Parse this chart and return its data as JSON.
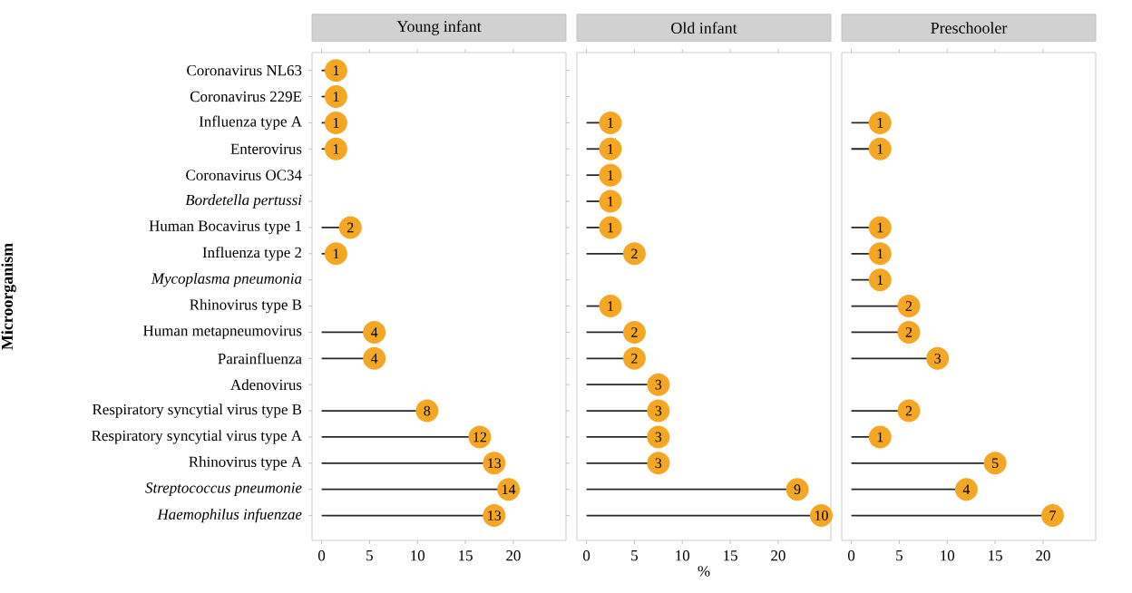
{
  "chart_data": [
    {
      "type": "lollipop",
      "orientation": "horizontal",
      "title": "Young infant",
      "ylabel": "Microorganism",
      "tick_labels": true,
      "marker": "circle",
      "color": "#f5a623",
      "categories": [
        "Coronavirus NL63",
        "Coronavirus 229E",
        "Influenza type A",
        "Enterovirus",
        "Coronavirus OC34",
        "*Bordetella pertussi*",
        "Human Bocavirus type 1",
        "Influenza type 2",
        "*Mycoplasma pneumonia*",
        "Rhinovirus type B",
        "Human metapneumovirus",
        "Parainfluenza",
        "Adenovirus",
        "Respiratory syncytial virus type B",
        "Respiratory syncytial virus type A",
        "Rhinovirus type A",
        "*Streptococcus pneumonie*",
        "*Haemophilus infuenzae*"
      ],
      "values": [
        1.5,
        1.5,
        1.5,
        1.5,
        null,
        null,
        3,
        1.5,
        null,
        null,
        5.5,
        5.5,
        null,
        11,
        16.5,
        18,
        19.5,
        18
      ],
      "annotations": [
        {
          "text": "1",
          "x": 1.5,
          "y": "Coronavirus NL63"
        },
        {
          "text": "1",
          "x": 1.5,
          "y": "Coronavirus 229E"
        },
        {
          "text": "1",
          "x": 1.5,
          "y": "Influenza type A"
        },
        {
          "text": "1",
          "x": 1.5,
          "y": "Enterovirus"
        },
        {
          "text": "2",
          "x": 3,
          "y": "Human Bocavirus type 1"
        },
        {
          "text": "1",
          "x": 1.5,
          "y": "Influenza type 2"
        },
        {
          "text": "4",
          "x": 5.5,
          "y": "Human metapneumovirus"
        },
        {
          "text": "4",
          "x": 5.5,
          "y": "Parainfluenza"
        },
        {
          "text": "8",
          "x": 11,
          "y": "Respiratory syncytial virus type B"
        },
        {
          "text": "12",
          "x": 16.5,
          "y": "Respiratory syncytial virus type A"
        },
        {
          "text": "13",
          "x": 18,
          "y": "Rhinovirus type A"
        },
        {
          "text": "14",
          "x": 19.5,
          "y": "*Streptococcus pneumonie*"
        },
        {
          "text": "13",
          "x": 18,
          "y": "*Haemophilus infuenzae*"
        }
      ],
      "xlim": [
        -1,
        25.5
      ],
      "xticks": [
        0,
        5,
        10,
        15,
        20
      ]
    },
    {
      "type": "lollipop",
      "orientation": "horizontal",
      "title": "Old infant",
      "xlabel": "%",
      "tick_labels": "x",
      "marker": "circle",
      "color": "#f5a623",
      "categories": [
        "Coronavirus NL63",
        "Coronavirus 229E",
        "Influenza type A",
        "Enterovirus",
        "Coronavirus OC34",
        "*Bordetella pertussi*",
        "Human Bocavirus type 1",
        "Influenza type 2",
        "*Mycoplasma pneumonia*",
        "Rhinovirus type B",
        "Human metapneumovirus",
        "Parainfluenza",
        "Adenovirus",
        "Respiratory syncytial virus type B",
        "Respiratory syncytial virus type A",
        "Rhinovirus type A",
        "*Streptococcus pneumonie*",
        "*Haemophilus infuenzae*"
      ],
      "values": [
        null,
        null,
        2.5,
        2.5,
        2.5,
        2.5,
        2.5,
        5,
        null,
        2.5,
        5,
        5,
        7.5,
        7.5,
        7.5,
        7.5,
        22,
        24.5
      ],
      "annotations": [
        {
          "text": "1",
          "x": 2.5,
          "y": "Influenza type A"
        },
        {
          "text": "1",
          "x": 2.5,
          "y": "Enterovirus"
        },
        {
          "text": "1",
          "x": 2.5,
          "y": "Coronavirus OC34"
        },
        {
          "text": "1",
          "x": 2.5,
          "y": "*Bordetella pertussi*"
        },
        {
          "text": "1",
          "x": 2.5,
          "y": "Human Bocavirus type 1"
        },
        {
          "text": "2",
          "x": 5,
          "y": "Influenza type 2"
        },
        {
          "text": "1",
          "x": 2.5,
          "y": "Rhinovirus type B"
        },
        {
          "text": "2",
          "x": 5,
          "y": "Human metapneumovirus"
        },
        {
          "text": "2",
          "x": 5,
          "y": "Parainfluenza"
        },
        {
          "text": "3",
          "x": 7.5,
          "y": "Adenovirus"
        },
        {
          "text": "3",
          "x": 7.5,
          "y": "Respiratory syncytial virus type B"
        },
        {
          "text": "3",
          "x": 7.5,
          "y": "Respiratory syncytial virus type A"
        },
        {
          "text": "3",
          "x": 7.5,
          "y": "Rhinovirus type A"
        },
        {
          "text": "9",
          "x": 22,
          "y": "*Streptococcus pneumonie*"
        },
        {
          "text": "10",
          "x": 24.5,
          "y": "*Haemophilus infuenzae*"
        }
      ],
      "xlim": [
        -1,
        25.5
      ],
      "xticks": [
        0,
        5,
        10,
        15,
        20
      ]
    },
    {
      "type": "lollipop",
      "orientation": "horizontal",
      "title": "Preschooler",
      "tick_labels": "x",
      "marker": "circle",
      "color": "#f5a623",
      "categories": [
        "Coronavirus NL63",
        "Coronavirus 229E",
        "Influenza type A",
        "Enterovirus",
        "Coronavirus OC34",
        "*Bordetella pertussi*",
        "Human Bocavirus type 1",
        "Influenza type 2",
        "*Mycoplasma pneumonia*",
        "Rhinovirus type B",
        "Human metapneumovirus",
        "Parainfluenza",
        "Adenovirus",
        "Respiratory syncytial virus type B",
        "Respiratory syncytial virus type A",
        "Rhinovirus type A",
        "*Streptococcus pneumonie*",
        "*Haemophilus infuenzae*"
      ],
      "values": [
        null,
        null,
        3,
        3,
        null,
        null,
        3,
        3,
        3,
        6,
        6,
        9,
        null,
        6,
        3,
        15,
        12,
        21
      ],
      "annotations": [
        {
          "text": "1",
          "x": 3,
          "y": "Influenza type A"
        },
        {
          "text": "1",
          "x": 3,
          "y": "Enterovirus"
        },
        {
          "text": "1",
          "x": 3,
          "y": "Human Bocavirus type 1"
        },
        {
          "text": "1",
          "x": 3,
          "y": "Influenza type 2"
        },
        {
          "text": "1",
          "x": 3,
          "y": "*Mycoplasma pneumonia*"
        },
        {
          "text": "2",
          "x": 6,
          "y": "Rhinovirus type B"
        },
        {
          "text": "2",
          "x": 6,
          "y": "Human metapneumovirus"
        },
        {
          "text": "3",
          "x": 9,
          "y": "Parainfluenza"
        },
        {
          "text": "2",
          "x": 6,
          "y": "Respiratory syncytial virus type B"
        },
        {
          "text": "1",
          "x": 3,
          "y": "Respiratory syncytial virus type A"
        },
        {
          "text": "5",
          "x": 15,
          "y": "Rhinovirus type A"
        },
        {
          "text": "4",
          "x": 12,
          "y": "*Streptococcus pneumonie*"
        },
        {
          "text": "7",
          "x": 21,
          "y": "*Haemophilus infuenzae*"
        }
      ],
      "xlim": [
        -1,
        25.5
      ],
      "xticks": [
        0,
        5,
        10,
        15,
        20
      ]
    }
  ]
}
